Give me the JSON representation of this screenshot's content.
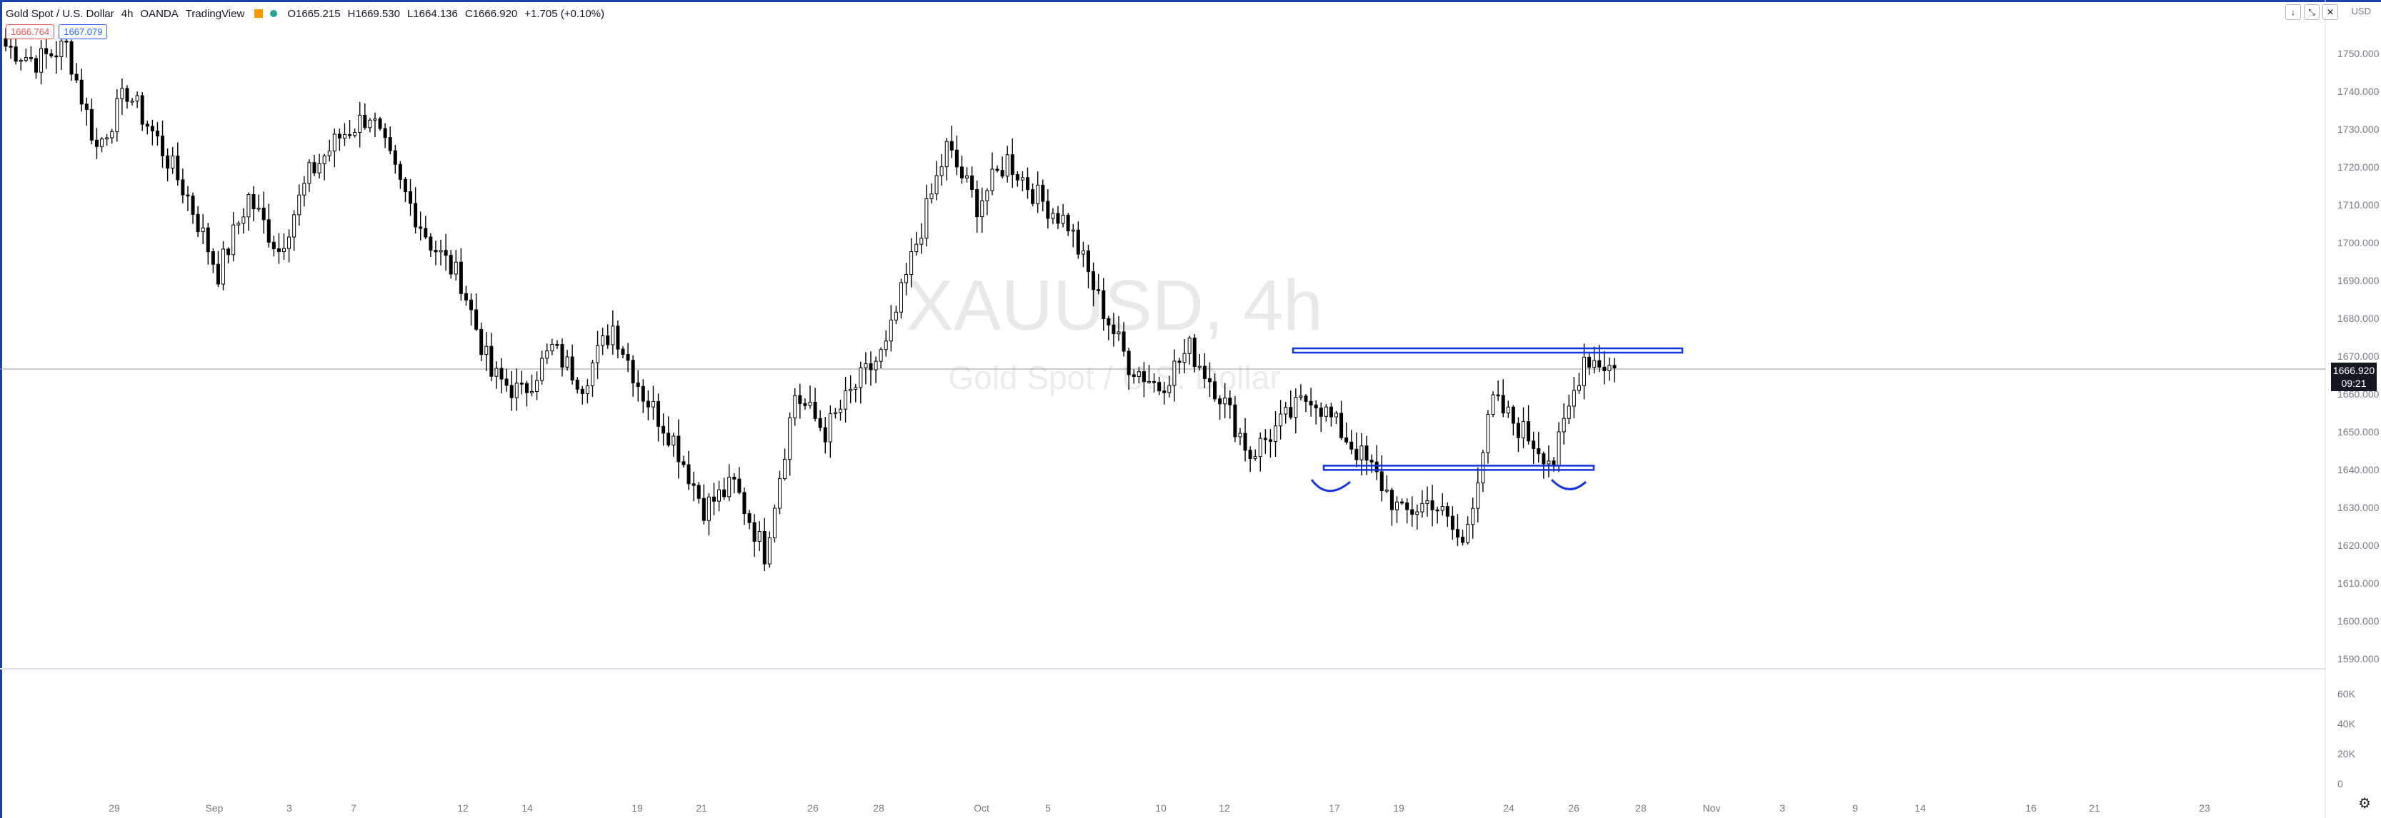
{
  "header": {
    "symbol_name": "Gold Spot / U.S. Dollar",
    "interval": "4h",
    "broker": "OANDA",
    "source": "TradingView",
    "open": "O1665.215",
    "high": "H1669.530",
    "low": "L1664.136",
    "close": "C1666.920",
    "change": "+1.705 (+0.10%)"
  },
  "tags": {
    "sell": "1666.764",
    "buy": "1667.079"
  },
  "currency": "USD",
  "last_price": {
    "value": "1666.920",
    "countdown": "09:21"
  },
  "colors": {
    "candle_up_fill": "#ffffff",
    "candle_down_fill": "#000000",
    "drawing": "#1533e6",
    "accent": "#1e3fb0"
  },
  "chart_data": {
    "type": "candlestick",
    "title": "XAUUSD, 4h",
    "subtitle": "Gold Spot / U.S. Dollar",
    "ylim": [
      1585,
      1760
    ],
    "y_ticks": [
      "1750.000",
      "1740.000",
      "1730.000",
      "1720.000",
      "1710.000",
      "1700.000",
      "1690.000",
      "1680.000",
      "1670.000",
      "1660.000",
      "1650.000",
      "1640.000",
      "1630.000",
      "1620.000",
      "1610.000",
      "1600.000",
      "1590.000"
    ],
    "volume_ticks": [
      "60K",
      "40K",
      "20K",
      "0"
    ],
    "x_ticks": [
      "29",
      "Sep",
      "3",
      "7",
      "12",
      "14",
      "19",
      "21",
      "26",
      "28",
      "Oct",
      "5",
      "10",
      "12",
      "17",
      "19",
      "24",
      "26",
      "28",
      "Nov",
      "3",
      "9",
      "14",
      "16",
      "21",
      "23"
    ],
    "anchors": [
      {
        "date": "Aug 25",
        "price": 1752
      },
      {
        "date": "Aug 26",
        "price": 1748
      },
      {
        "date": "Aug 27",
        "price": 1752
      },
      {
        "date": "Aug 28",
        "price": 1725
      },
      {
        "date": "Aug 31",
        "price": 1740
      },
      {
        "date": "Sep 1",
        "price": 1727
      },
      {
        "date": "Sep 3",
        "price": 1712
      },
      {
        "date": "Sep 4",
        "price": 1692
      },
      {
        "date": "Sep 7",
        "price": 1712
      },
      {
        "date": "Sep 8",
        "price": 1698
      },
      {
        "date": "Sep 9",
        "price": 1718
      },
      {
        "date": "Sep 11",
        "price": 1728
      },
      {
        "date": "Sep 13",
        "price": 1734
      },
      {
        "date": "Sep 14",
        "price": 1715
      },
      {
        "date": "Sep 15",
        "price": 1700
      },
      {
        "date": "Sep 16",
        "price": 1690
      },
      {
        "date": "Sep 17",
        "price": 1665
      },
      {
        "date": "Sep 18",
        "price": 1660
      },
      {
        "date": "Sep 19",
        "price": 1672
      },
      {
        "date": "Sep 21",
        "price": 1663
      },
      {
        "date": "Sep 22",
        "price": 1678
      },
      {
        "date": "Sep 23",
        "price": 1660
      },
      {
        "date": "Sep 24",
        "price": 1648
      },
      {
        "date": "Sep 25",
        "price": 1630
      },
      {
        "date": "Sep 27",
        "price": 1636
      },
      {
        "date": "Sep 28",
        "price": 1618
      },
      {
        "date": "Sep 29",
        "price": 1660
      },
      {
        "date": "Sep 30",
        "price": 1650
      },
      {
        "date": "Oct 1",
        "price": 1662
      },
      {
        "date": "Oct 2",
        "price": 1672
      },
      {
        "date": "Oct 3",
        "price": 1700
      },
      {
        "date": "Oct 4",
        "price": 1725
      },
      {
        "date": "Oct 6",
        "price": 1710
      },
      {
        "date": "Oct 7",
        "price": 1722
      },
      {
        "date": "Oct 8",
        "price": 1712
      },
      {
        "date": "Oct 9",
        "price": 1705
      },
      {
        "date": "Oct 10",
        "price": 1685
      },
      {
        "date": "Oct 11",
        "price": 1668
      },
      {
        "date": "Oct 12",
        "price": 1662
      },
      {
        "date": "Oct 13",
        "price": 1672
      },
      {
        "date": "Oct 14",
        "price": 1660
      },
      {
        "date": "Oct 15",
        "price": 1644
      },
      {
        "date": "Oct 16",
        "price": 1652
      },
      {
        "date": "Oct 18",
        "price": 1660
      },
      {
        "date": "Oct 19",
        "price": 1650
      },
      {
        "date": "Oct 20",
        "price": 1640
      },
      {
        "date": "Oct 21",
        "price": 1628
      },
      {
        "date": "Oct 22",
        "price": 1632
      },
      {
        "date": "Oct 23",
        "price": 1620
      },
      {
        "date": "Oct 24",
        "price": 1658
      },
      {
        "date": "Oct 25",
        "price": 1650
      },
      {
        "date": "Oct 26",
        "price": 1642
      },
      {
        "date": "Oct 27",
        "price": 1670
      },
      {
        "date": "Oct 27b",
        "price": 1666.9
      }
    ],
    "annotations": {
      "resistance": {
        "price": 1671.5,
        "from": "Oct 15",
        "to": "Oct 30"
      },
      "support": {
        "price": 1640.5,
        "from": "Oct 16",
        "to": "Oct 27"
      },
      "left_shoulder": "Oct 17",
      "right_shoulder": "Oct 26"
    }
  }
}
